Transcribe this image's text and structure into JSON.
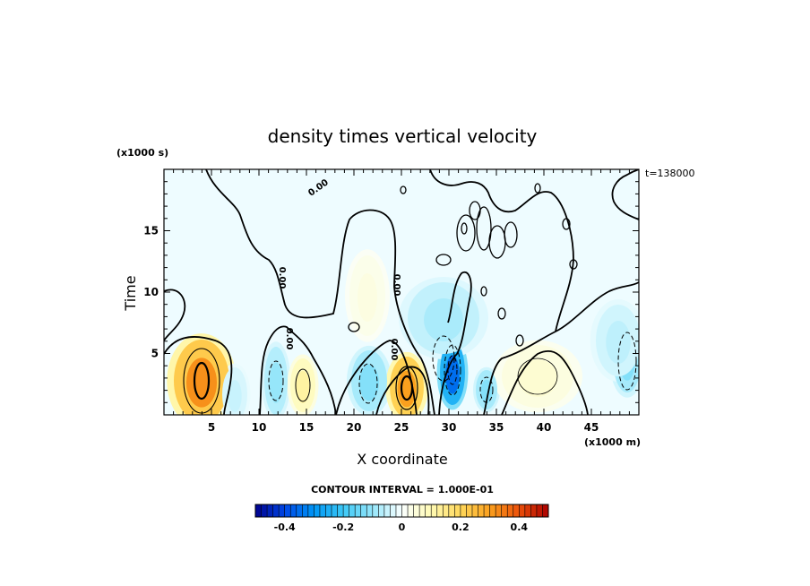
{
  "chart_data": {
    "type": "heatmap",
    "title": "density times vertical velocity",
    "xlabel": "X coordinate",
    "ylabel": "Time",
    "x_unit": "(x1000 m)",
    "y_unit": "(x1000 s)",
    "timestamp": "t=138000",
    "xlim": [
      0,
      50
    ],
    "ylim": [
      0,
      20
    ],
    "x_ticks": [
      5,
      10,
      15,
      20,
      25,
      30,
      35,
      40,
      45
    ],
    "x_tick_labels": [
      "5",
      "10",
      "15",
      "20",
      "25",
      "30",
      "35",
      "40",
      "45"
    ],
    "y_ticks": [
      5,
      10,
      15
    ],
    "y_tick_labels": [
      "5",
      "10",
      "15"
    ],
    "contour_interval_text": "CONTOUR INTERVAL = 1.000E-01",
    "contour_label": "0.00",
    "colorbar": {
      "min": -0.5,
      "max": 0.5,
      "ticks": [
        -0.4,
        -0.2,
        0,
        0.2,
        0.4
      ],
      "tick_labels": [
        "-0.4",
        "-0.2",
        "0",
        "0.2",
        "0.4"
      ]
    },
    "features": [
      {
        "x": 3.8,
        "y": 2.8,
        "value": 0.32
      },
      {
        "x": 8.5,
        "y": 3.0,
        "value": -0.05
      },
      {
        "x": 11.5,
        "y": 3.5,
        "value": -0.1
      },
      {
        "x": 14.5,
        "y": 3.0,
        "value": 0.12
      },
      {
        "x": 21.0,
        "y": 3.0,
        "value": -0.12
      },
      {
        "x": 25.5,
        "y": 2.5,
        "value": 0.3
      },
      {
        "x": 30.2,
        "y": 3.5,
        "value": -0.35
      },
      {
        "x": 33.5,
        "y": 2.5,
        "value": -0.12
      },
      {
        "x": 40.5,
        "y": 3.0,
        "value": 0.06
      },
      {
        "x": 48.0,
        "y": 4.0,
        "value": -0.12
      },
      {
        "x": 22.0,
        "y": 10.0,
        "value": 0.04
      },
      {
        "x": 29.0,
        "y": 9.0,
        "value": -0.08
      },
      {
        "x": 48.0,
        "y": 8.0,
        "value": -0.06
      }
    ]
  }
}
